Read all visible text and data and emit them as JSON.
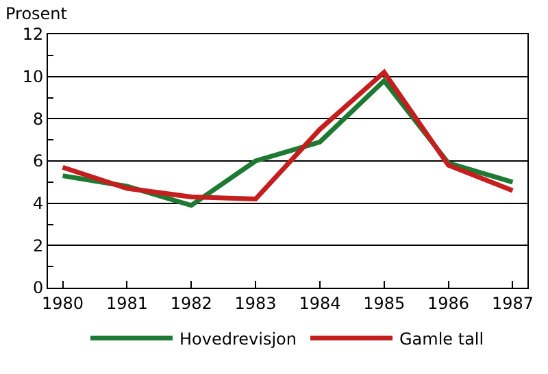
{
  "chart_data": {
    "type": "line",
    "ylabel": "Prosent",
    "x": [
      1980,
      1981,
      1982,
      1983,
      1984,
      1985,
      1986,
      1987
    ],
    "series": [
      {
        "name": "Hovedrevisjon",
        "color": "#1e7a32",
        "values": [
          5.3,
          4.8,
          3.9,
          6.0,
          6.9,
          9.8,
          5.9,
          5.0
        ]
      },
      {
        "name": "Gamle tall",
        "color": "#c41e1e",
        "values": [
          5.7,
          4.7,
          4.3,
          4.2,
          7.5,
          10.2,
          5.8,
          4.6
        ]
      }
    ],
    "xlim": [
      1979.77,
      1987.23
    ],
    "xticks": [
      1980,
      1981,
      1982,
      1983,
      1984,
      1985,
      1986,
      1987
    ],
    "ylim": [
      0,
      12
    ],
    "yticks": [
      0,
      2,
      4,
      6,
      8,
      10,
      12
    ],
    "grid": "y",
    "legend": "bottom",
    "marker": "none",
    "line_style": "solid"
  }
}
